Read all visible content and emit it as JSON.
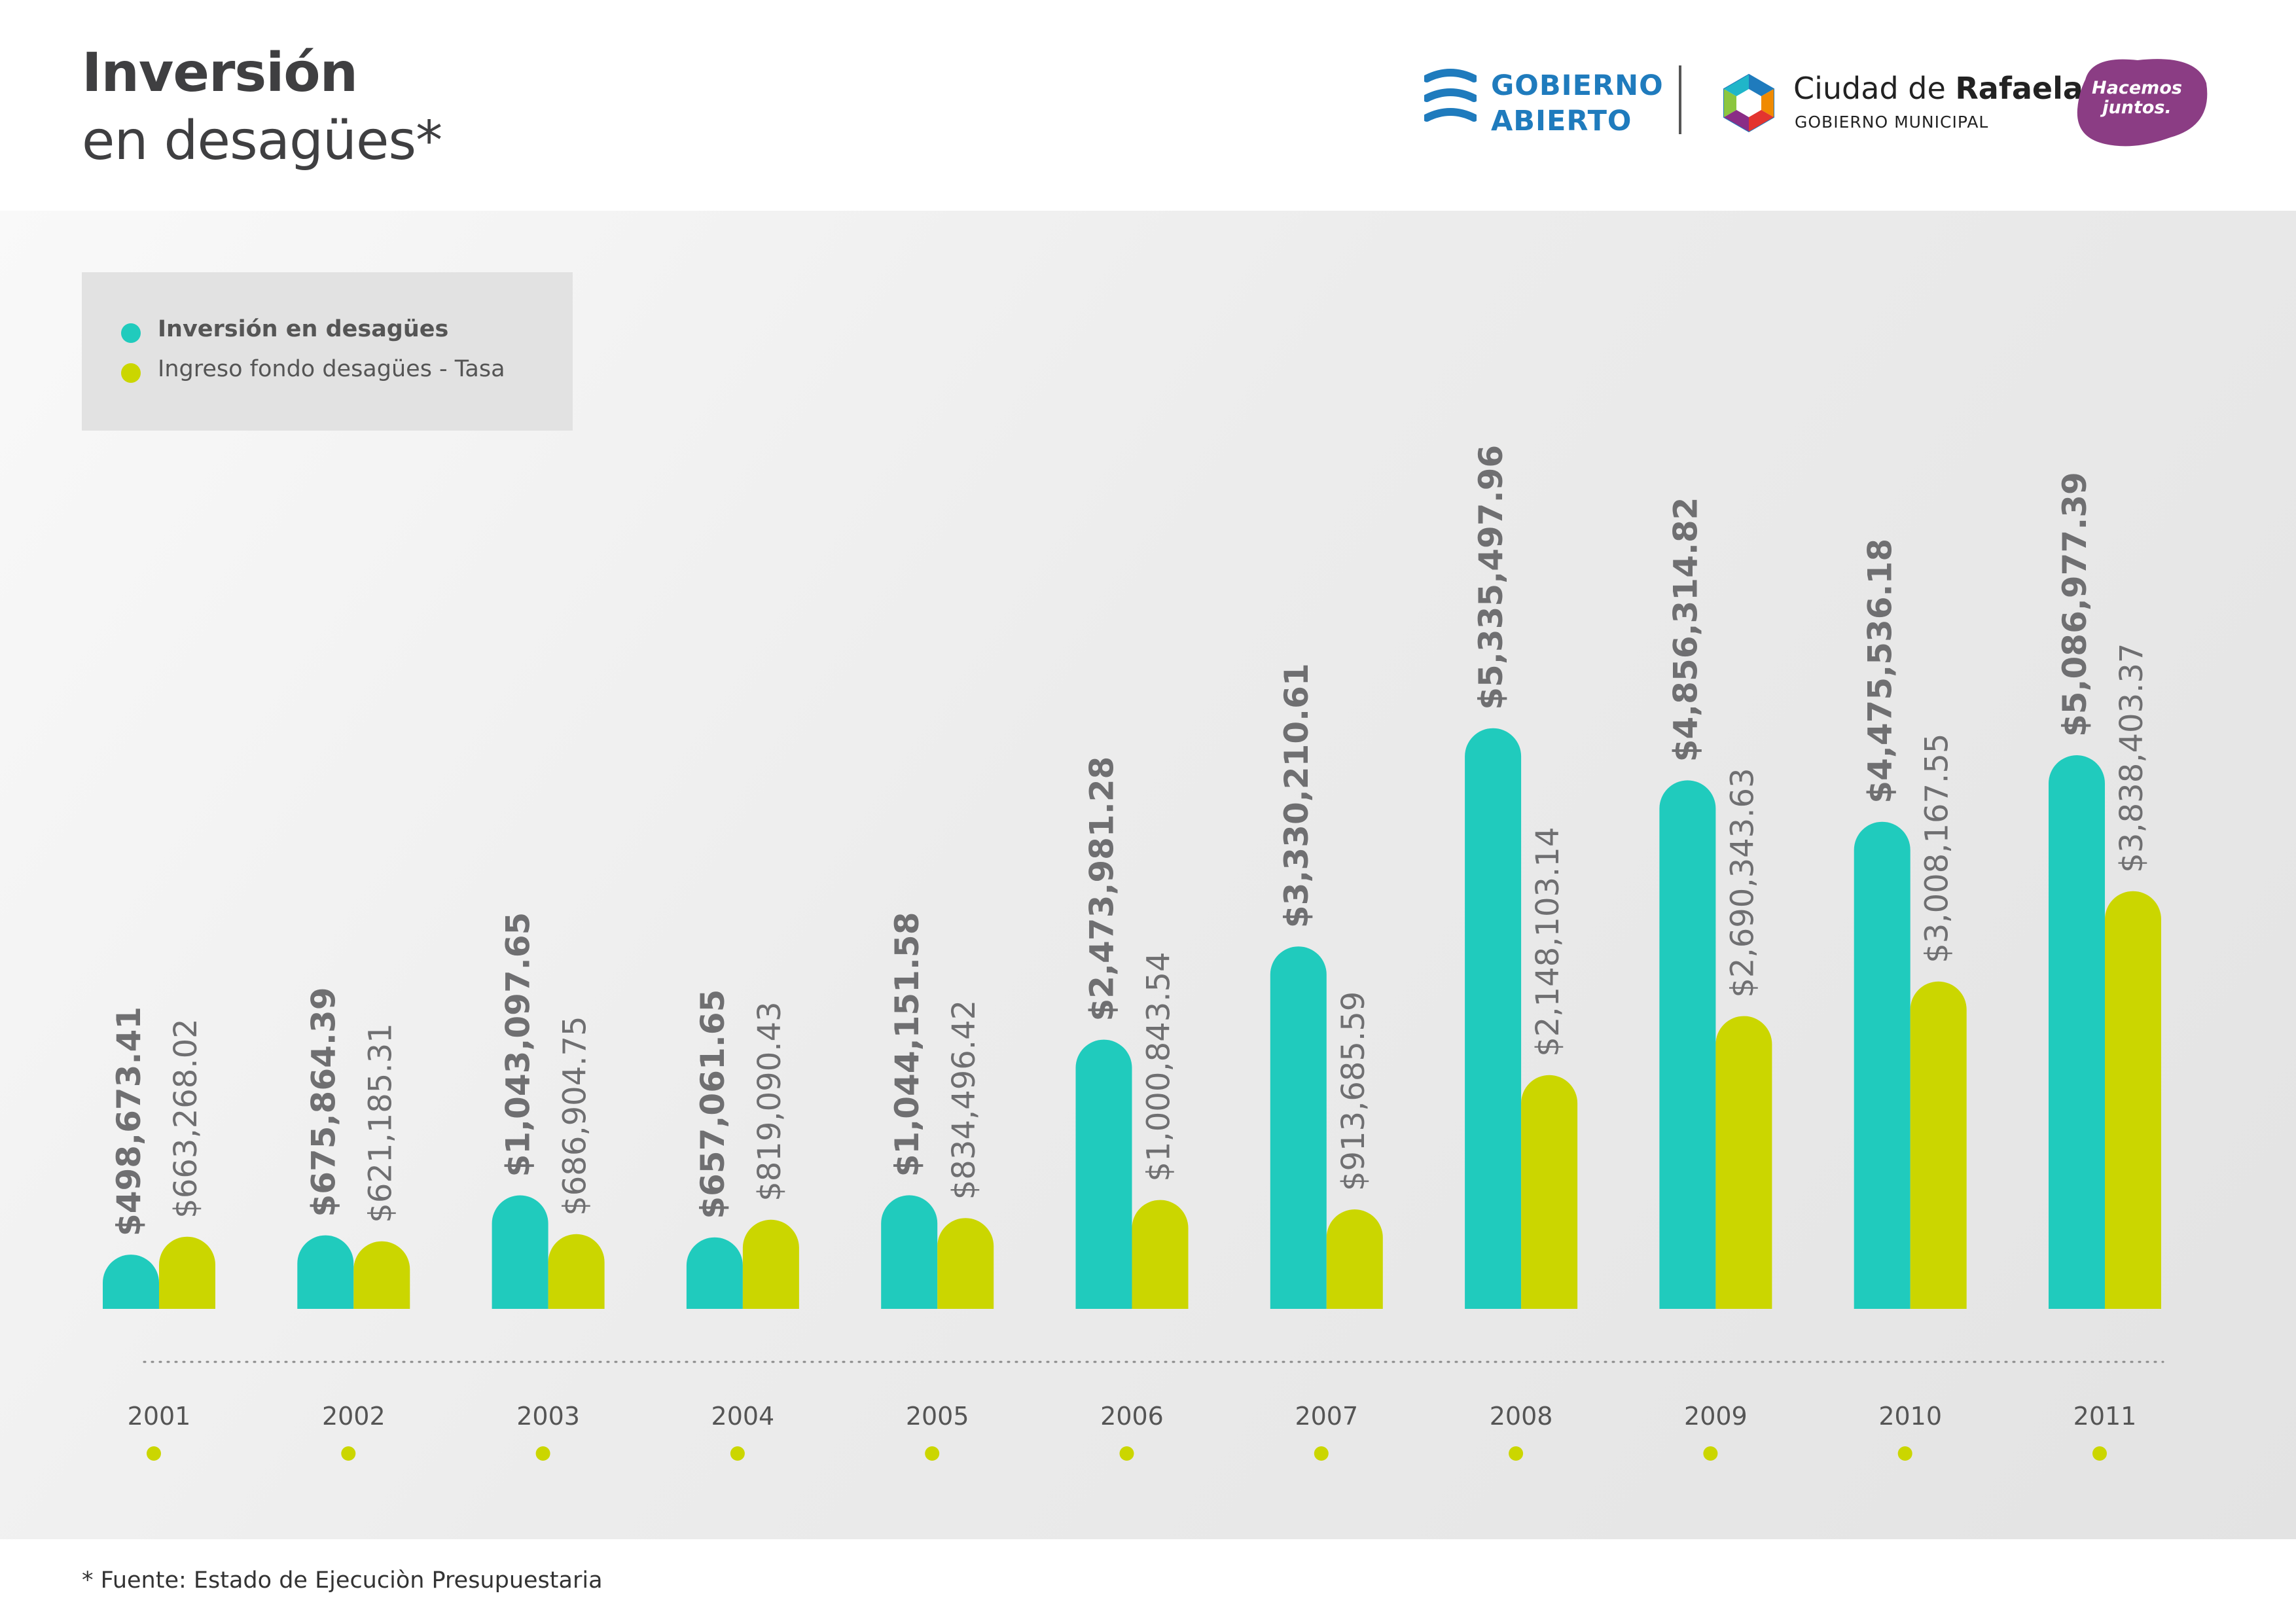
{
  "title": {
    "line1": "Inversión",
    "line2": "en desagües*"
  },
  "logos": {
    "gobierno_abierto": {
      "line1": "GOBIERNO",
      "line2": "ABIERTO"
    },
    "ciudad": {
      "name_prefix": "Ciudad de ",
      "name_bold": "Rafaela",
      "subtitle": "GOBIERNO MUNICIPAL"
    },
    "hacemos": {
      "line1": "Hacemos",
      "line2": "juntos."
    }
  },
  "footnote": "* Fuente: Estado de Ejecuciòn Presupuestaria",
  "colors": {
    "inversion": "#20cbbd",
    "ingreso": "#cbd600",
    "text": "#6f6f71",
    "year_dot": "#cbd600"
  },
  "chart_data": {
    "type": "bar",
    "categories": [
      "2001",
      "2002",
      "2003",
      "2004",
      "2005",
      "2006",
      "2007",
      "2008",
      "2009",
      "2010",
      "2011"
    ],
    "series": [
      {
        "name": "Inversión en desagües",
        "values": [
          498673.41,
          675864.39,
          1043097.65,
          657061.65,
          1044151.58,
          2473981.28,
          3330210.61,
          5335497.96,
          4856314.82,
          4475536.18,
          5086977.39
        ],
        "labels": [
          "$498,673.41",
          "$675,864.39",
          "$1,043,097.65",
          "$657,061.65",
          "$1,044,151.58",
          "$2,473,981.28",
          "$3,330,210.61",
          "$5,335,497.96",
          "$4,856,314.82",
          "$4,475,536.18",
          "$5,086,977.39"
        ]
      },
      {
        "name": "Ingreso fondo desagües - Tasa",
        "values": [
          663268.02,
          621185.31,
          686904.75,
          819090.43,
          834496.42,
          1000843.54,
          913685.59,
          2148103.14,
          2690343.63,
          3008167.55,
          3838403.37
        ],
        "labels": [
          "$663,268.02",
          "$621,185.31",
          "$686,904.75",
          "$819,090.43",
          "$834,496.42",
          "$1,000,843.54",
          "$913,685.59",
          "$2,148,103.14",
          "$2,690,343.63",
          "$3,008,167.55",
          "$3,838,403.37"
        ]
      }
    ],
    "legend_position": "top-left",
    "grid": false,
    "ylim": [
      0,
      5400000
    ]
  }
}
